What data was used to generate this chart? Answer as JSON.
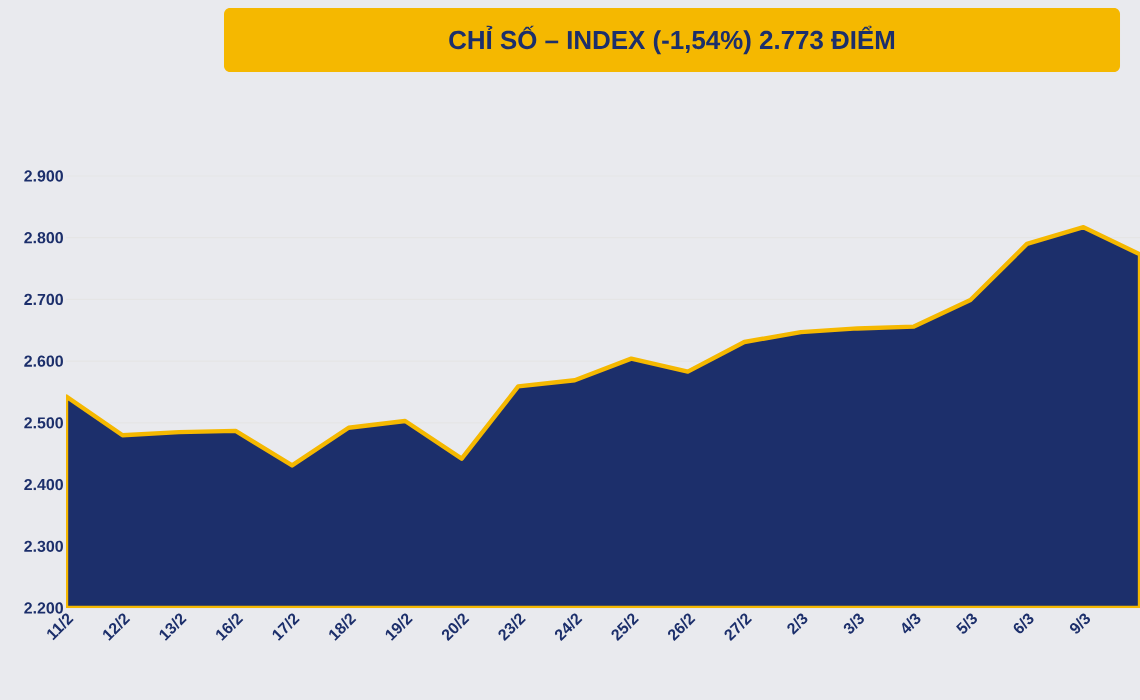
{
  "chart_data": {
    "type": "area",
    "title": "CHỈ SỐ – INDEX (-1,54%) 2.773 ĐIỂM",
    "categories": [
      "11/2",
      "12/2",
      "13/2",
      "16/2",
      "17/2",
      "18/2",
      "19/2",
      "20/2",
      "23/2",
      "24/2",
      "25/2",
      "26/2",
      "27/2",
      "2/3",
      "3/3",
      "4/3",
      "5/3",
      "6/3",
      "9/3",
      null
    ],
    "series": [
      {
        "color": "#1c2f6b",
        "values": [
          2543,
          2480,
          2485,
          2487,
          2431,
          2492,
          2503,
          2442,
          2559,
          2569,
          2604,
          2583,
          2631,
          2647,
          2653,
          2656,
          2699,
          2790,
          2817,
          2773
        ]
      }
    ],
    "ylim": [
      2200,
      2900
    ],
    "yticks": [
      {
        "value": 2200,
        "label": "2.200"
      },
      {
        "value": 2300,
        "label": "2.300"
      },
      {
        "value": 2400,
        "label": "2.400"
      },
      {
        "value": 2500,
        "label": "2.500"
      },
      {
        "value": 2600,
        "label": "2.600"
      },
      {
        "value": 2700,
        "label": "2.700"
      },
      {
        "value": 2800,
        "label": "2.800"
      },
      {
        "value": 2900,
        "label": "2.900"
      }
    ],
    "grid": "y"
  }
}
